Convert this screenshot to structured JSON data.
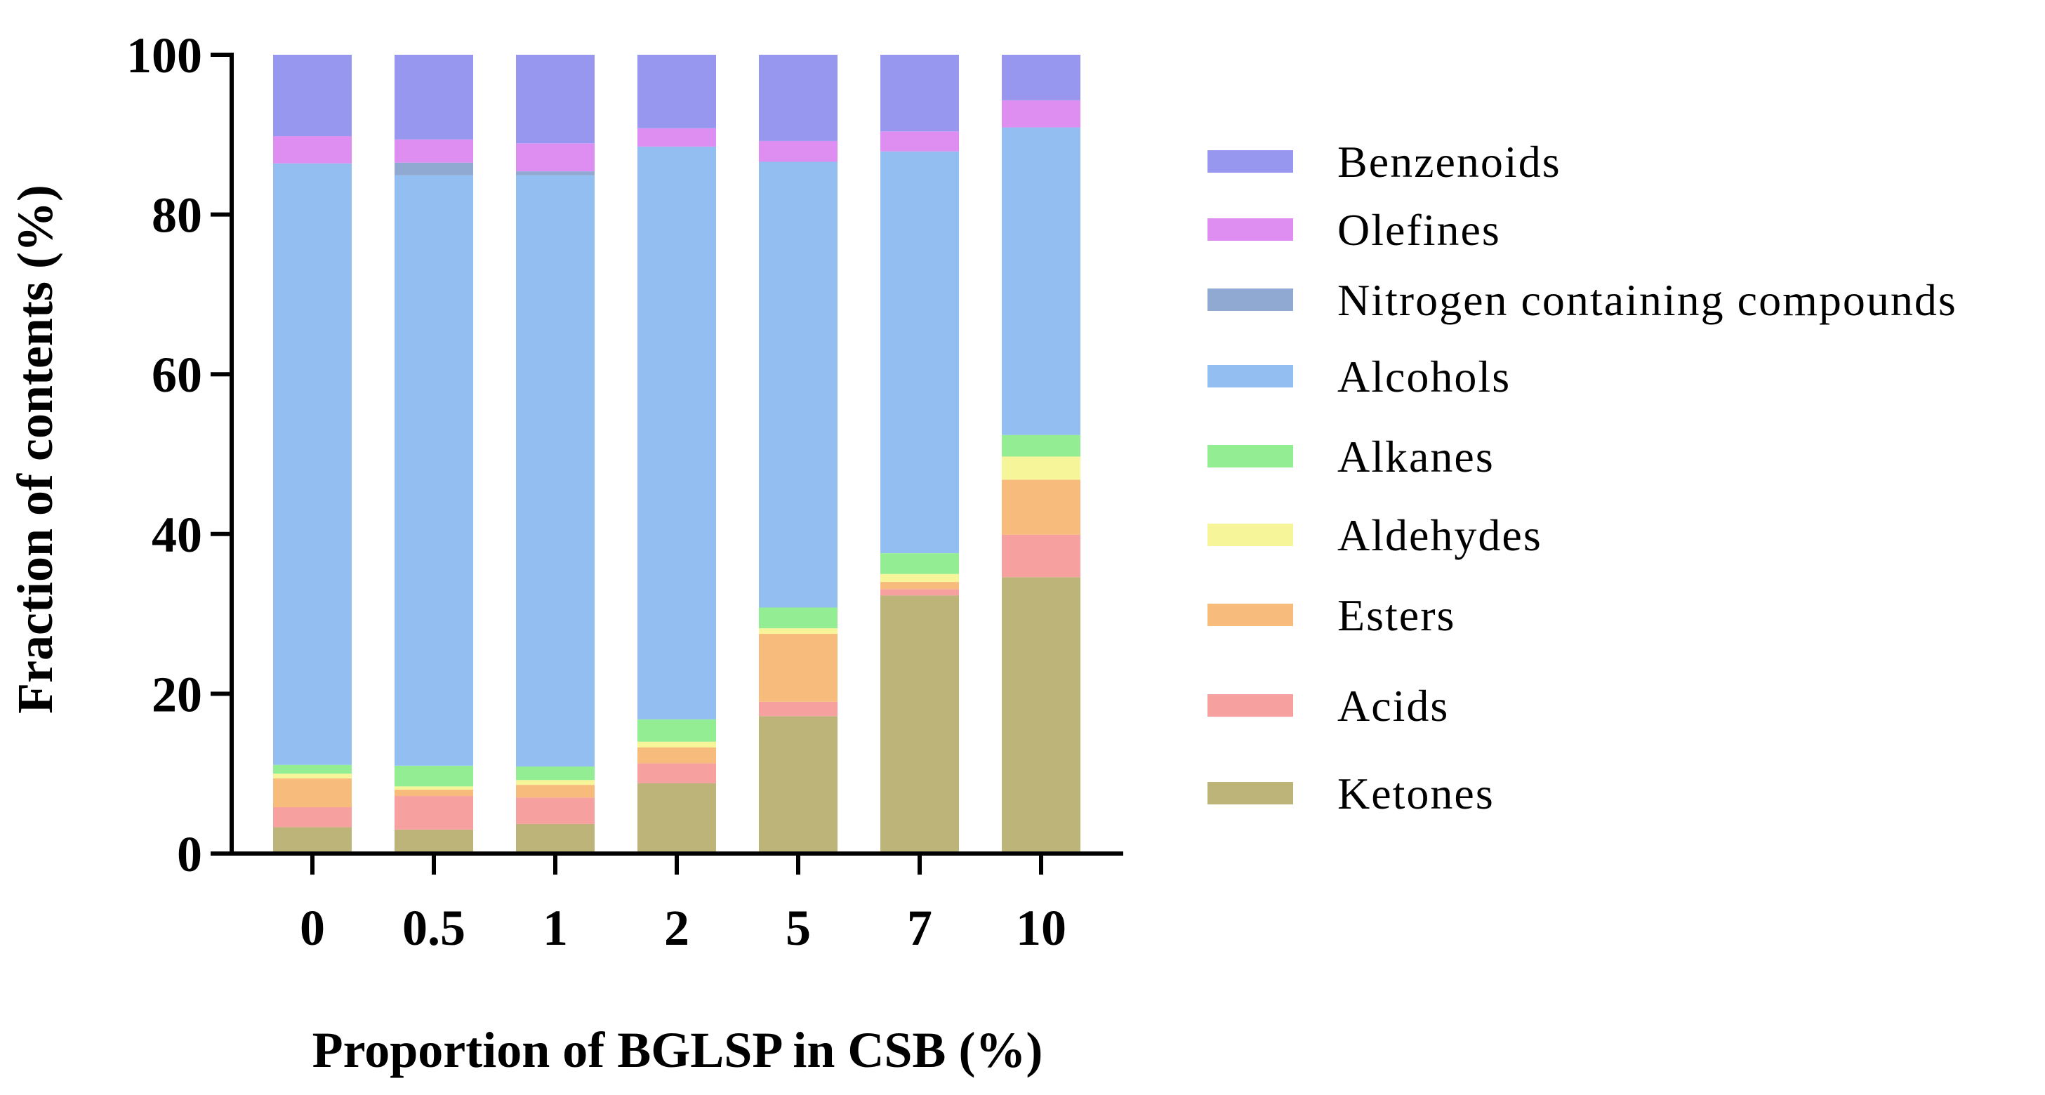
{
  "chart_data": {
    "type": "stacked-bar",
    "title": "",
    "xlabel": "Proportion of BGLSP in CSB (%)",
    "ylabel": "Fraction of contents (%)",
    "categories": [
      "0",
      "0.5",
      "1",
      "2",
      "5",
      "7",
      "10"
    ],
    "ylim": [
      0,
      100
    ],
    "yticks": [
      "0",
      "20",
      "40",
      "60",
      "80",
      "100"
    ],
    "legend_position": "right",
    "series": [
      {
        "name": "Ketones",
        "color": "#bdb47a",
        "values": [
          3.3,
          3.0,
          3.7,
          8.8,
          17.2,
          32.3,
          34.6
        ]
      },
      {
        "name": "Acids",
        "color": "#f6a0a0",
        "values": [
          2.5,
          4.2,
          3.3,
          2.5,
          1.8,
          0.8,
          5.3
        ]
      },
      {
        "name": "Esters",
        "color": "#f7bb7c",
        "values": [
          3.6,
          0.8,
          1.6,
          2.0,
          8.5,
          0.9,
          6.9
        ]
      },
      {
        "name": "Aldehydes",
        "color": "#f7f59a",
        "values": [
          0.6,
          0.4,
          0.6,
          0.7,
          0.7,
          1.0,
          2.9
        ]
      },
      {
        "name": "Alkanes",
        "color": "#93ed93",
        "values": [
          1.1,
          2.6,
          1.7,
          2.8,
          2.6,
          2.6,
          2.7
        ]
      },
      {
        "name": "Alcohols",
        "color": "#92bef2",
        "values": [
          75.3,
          73.9,
          74.0,
          71.7,
          55.8,
          50.3,
          38.5
        ]
      },
      {
        "name": "Nitrogen containing compounds",
        "color": "#8fa9d3",
        "values": [
          0.0,
          1.6,
          0.5,
          0.0,
          0.0,
          0.0,
          0.0
        ]
      },
      {
        "name": "Olefines",
        "color": "#dd8ef0",
        "values": [
          3.4,
          2.9,
          3.5,
          2.3,
          2.6,
          2.5,
          3.4
        ]
      },
      {
        "name": "Benzenoids",
        "color": "#9797ef",
        "values": [
          10.2,
          10.6,
          11.1,
          9.2,
          10.8,
          9.6,
          5.7
        ]
      }
    ],
    "legend_order": [
      "Benzenoids",
      "Olefines",
      "Nitrogen containing compounds",
      "Alcohols",
      "Alkanes",
      "Aldehydes",
      "Esters",
      "Acids",
      "Ketones"
    ]
  }
}
